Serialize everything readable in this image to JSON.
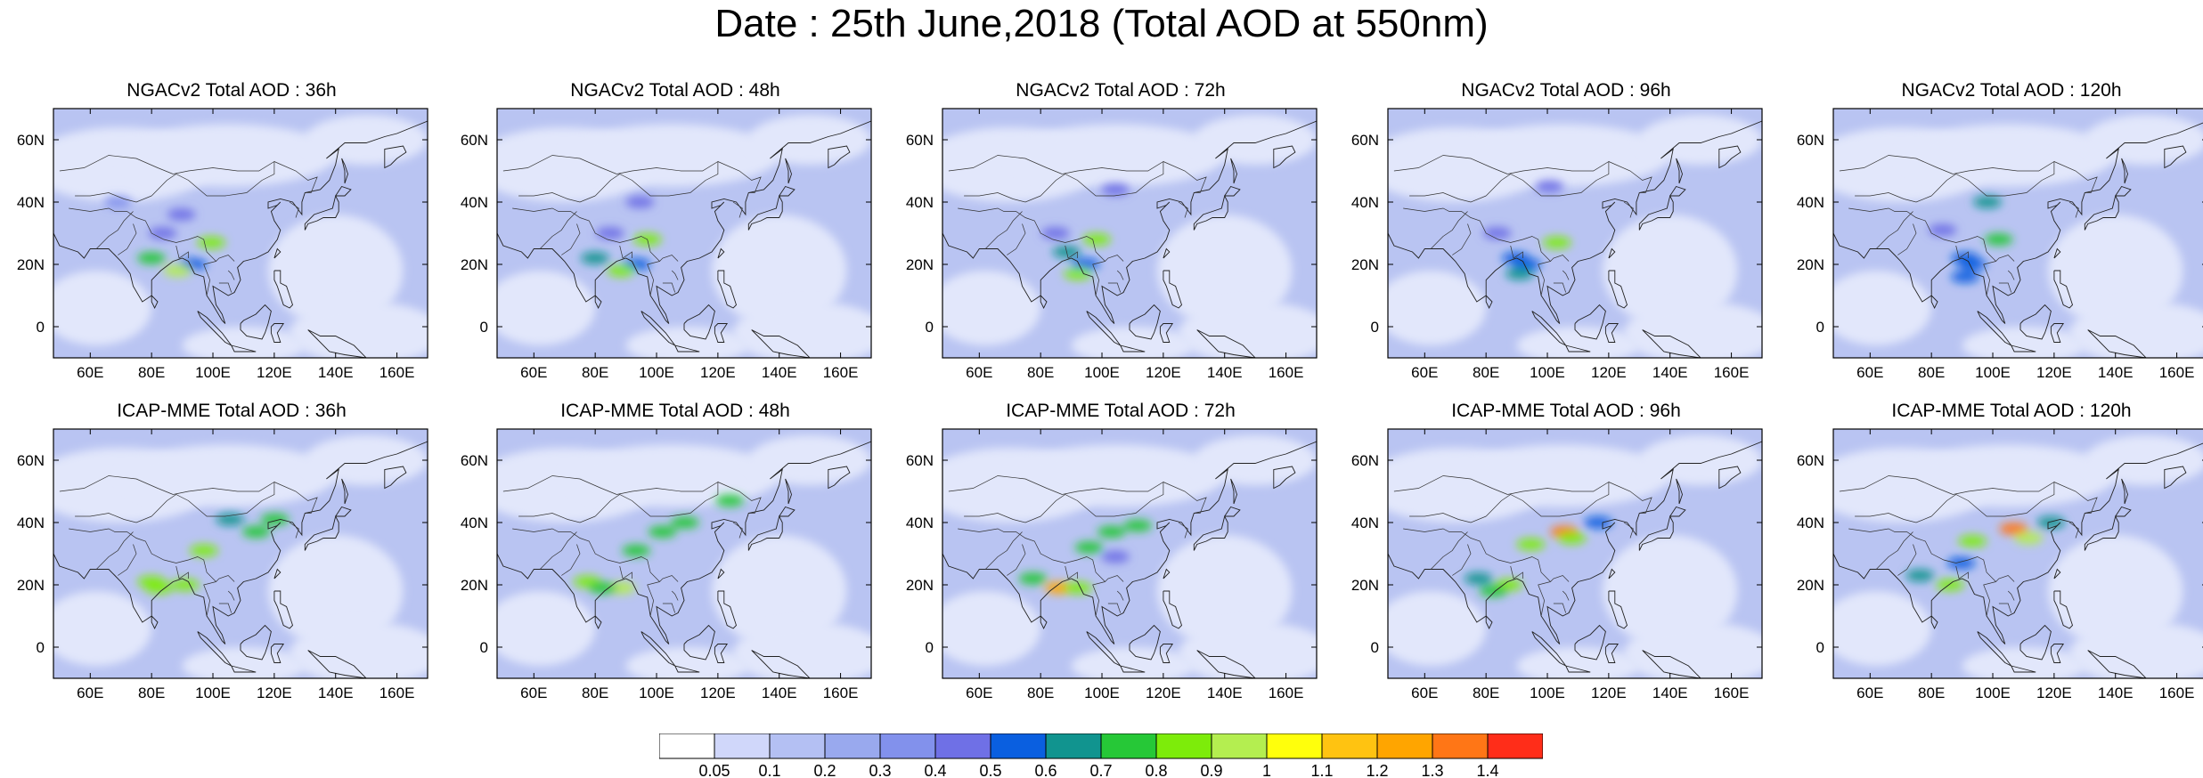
{
  "title": "Date : 25th June,2018 (Total AOD at 550nm)",
  "map": {
    "lon_range": [
      48,
      170
    ],
    "lat_range": [
      -10,
      70
    ],
    "lon_ticks": [
      "60E",
      "80E",
      "100E",
      "120E",
      "140E",
      "160E"
    ],
    "lat_ticks": [
      "60N",
      "40N",
      "20N",
      "0"
    ],
    "background_color": "#b9c4f2"
  },
  "rows": [
    {
      "model": "NGACv2",
      "panels": [
        {
          "title": "NGACv2 Total AOD : 36h",
          "hotspots": [
            [
              18,
              22,
              0.75
            ],
            [
              29,
              20,
              0.55
            ],
            [
              25,
              18,
              0.9
            ],
            [
              34,
              27,
              0.8
            ],
            [
              21,
              30,
              0.45
            ],
            [
              26,
              36,
              0.4
            ],
            [
              9,
              40,
              0.35
            ]
          ]
        },
        {
          "title": "NGACv2 Total AOD : 48h",
          "hotspots": [
            [
              18,
              22,
              0.6
            ],
            [
              29,
              20,
              0.55
            ],
            [
              25,
              18,
              0.85
            ],
            [
              32,
              28,
              0.8
            ],
            [
              22,
              30,
              0.45
            ],
            [
              30,
              40,
              0.4
            ]
          ]
        },
        {
          "title": "NGACv2 Total AOD : 72h",
          "hotspots": [
            [
              25,
              24,
              0.6
            ],
            [
              30,
              20,
              0.55
            ],
            [
              28,
              17,
              0.8
            ],
            [
              33,
              28,
              0.8
            ],
            [
              22,
              30,
              0.45
            ],
            [
              38,
              44,
              0.4
            ]
          ]
        },
        {
          "title": "NGACv2 Total AOD : 96h",
          "hotspots": [
            [
              26,
              22,
              0.55
            ],
            [
              29,
              20,
              0.55
            ],
            [
              27,
              17,
              0.6
            ],
            [
              37,
              27,
              0.8
            ],
            [
              21,
              30,
              0.45
            ],
            [
              35,
              45,
              0.4
            ]
          ]
        },
        {
          "title": "NGACv2 Total AOD : 120h",
          "hotspots": [
            [
              27,
              22,
              0.55
            ],
            [
              29,
              20,
              0.55
            ],
            [
              27,
              16,
              0.55
            ],
            [
              36,
              28,
              0.75
            ],
            [
              33,
              40,
              0.6
            ],
            [
              21,
              31,
              0.45
            ]
          ]
        }
      ]
    },
    {
      "model": "ICAP-MME",
      "panels": [
        {
          "title": "ICAP-MME Total AOD : 36h",
          "hotspots": [
            [
              18,
              21,
              0.85
            ],
            [
              27,
              20,
              0.8
            ],
            [
              20,
              19,
              0.8
            ],
            [
              32,
              31,
              0.8
            ],
            [
              39,
              41,
              0.65
            ],
            [
              46,
              37,
              0.75
            ],
            [
              51,
              41,
              0.7
            ]
          ]
        },
        {
          "title": "ICAP-MME Total AOD : 48h",
          "hotspots": [
            [
              16,
              21,
              0.8
            ],
            [
              25,
              19,
              0.9
            ],
            [
              20,
              19,
              0.75
            ],
            [
              29,
              31,
              0.75
            ],
            [
              36,
              37,
              0.7
            ],
            [
              42,
              40,
              0.7
            ],
            [
              54,
              47,
              0.7
            ]
          ]
        },
        {
          "title": "ICAP-MME Total AOD : 72h",
          "hotspots": [
            [
              16,
              22,
              0.7
            ],
            [
              23,
              19,
              1.2
            ],
            [
              28,
              19,
              0.8
            ],
            [
              31,
              32,
              0.75
            ],
            [
              37,
              37,
              0.7
            ],
            [
              44,
              39,
              0.7
            ],
            [
              38,
              29,
              0.45
            ]
          ]
        },
        {
          "title": "ICAP-MME Total AOD : 96h",
          "hotspots": [
            [
              16,
              22,
              0.6
            ],
            [
              24,
              20,
              0.8
            ],
            [
              20,
              18,
              0.7
            ],
            [
              30,
              33,
              0.85
            ],
            [
              39,
              37,
              1.3
            ],
            [
              41,
              35,
              0.8
            ],
            [
              48,
              40,
              0.55
            ]
          ]
        },
        {
          "title": "ICAP-MME Total AOD : 120h",
          "hotspots": [
            [
              15,
              23,
              0.6
            ],
            [
              23,
              20,
              0.8
            ],
            [
              26,
              27,
              0.55
            ],
            [
              29,
              34,
              0.8
            ],
            [
              40,
              38,
              1.3
            ],
            [
              44,
              35,
              0.9
            ],
            [
              50,
              40,
              0.6
            ]
          ]
        }
      ]
    }
  ],
  "colorbar": {
    "colors": [
      "#ffffff",
      "#d0d7fa",
      "#b4c0f3",
      "#99a9ee",
      "#8291ec",
      "#6f70e6",
      "#0a5fe0",
      "#11948f",
      "#26c837",
      "#7dec0a",
      "#b4ee50",
      "#ffff0c",
      "#ffc311",
      "#ffa500",
      "#ff7616",
      "#ff2d19"
    ],
    "labels": [
      "0.05",
      "0.1",
      "0.2",
      "0.3",
      "0.4",
      "0.5",
      "0.6",
      "0.7",
      "0.8",
      "0.9",
      "1",
      "1.1",
      "1.2",
      "1.3",
      "1.4"
    ]
  }
}
